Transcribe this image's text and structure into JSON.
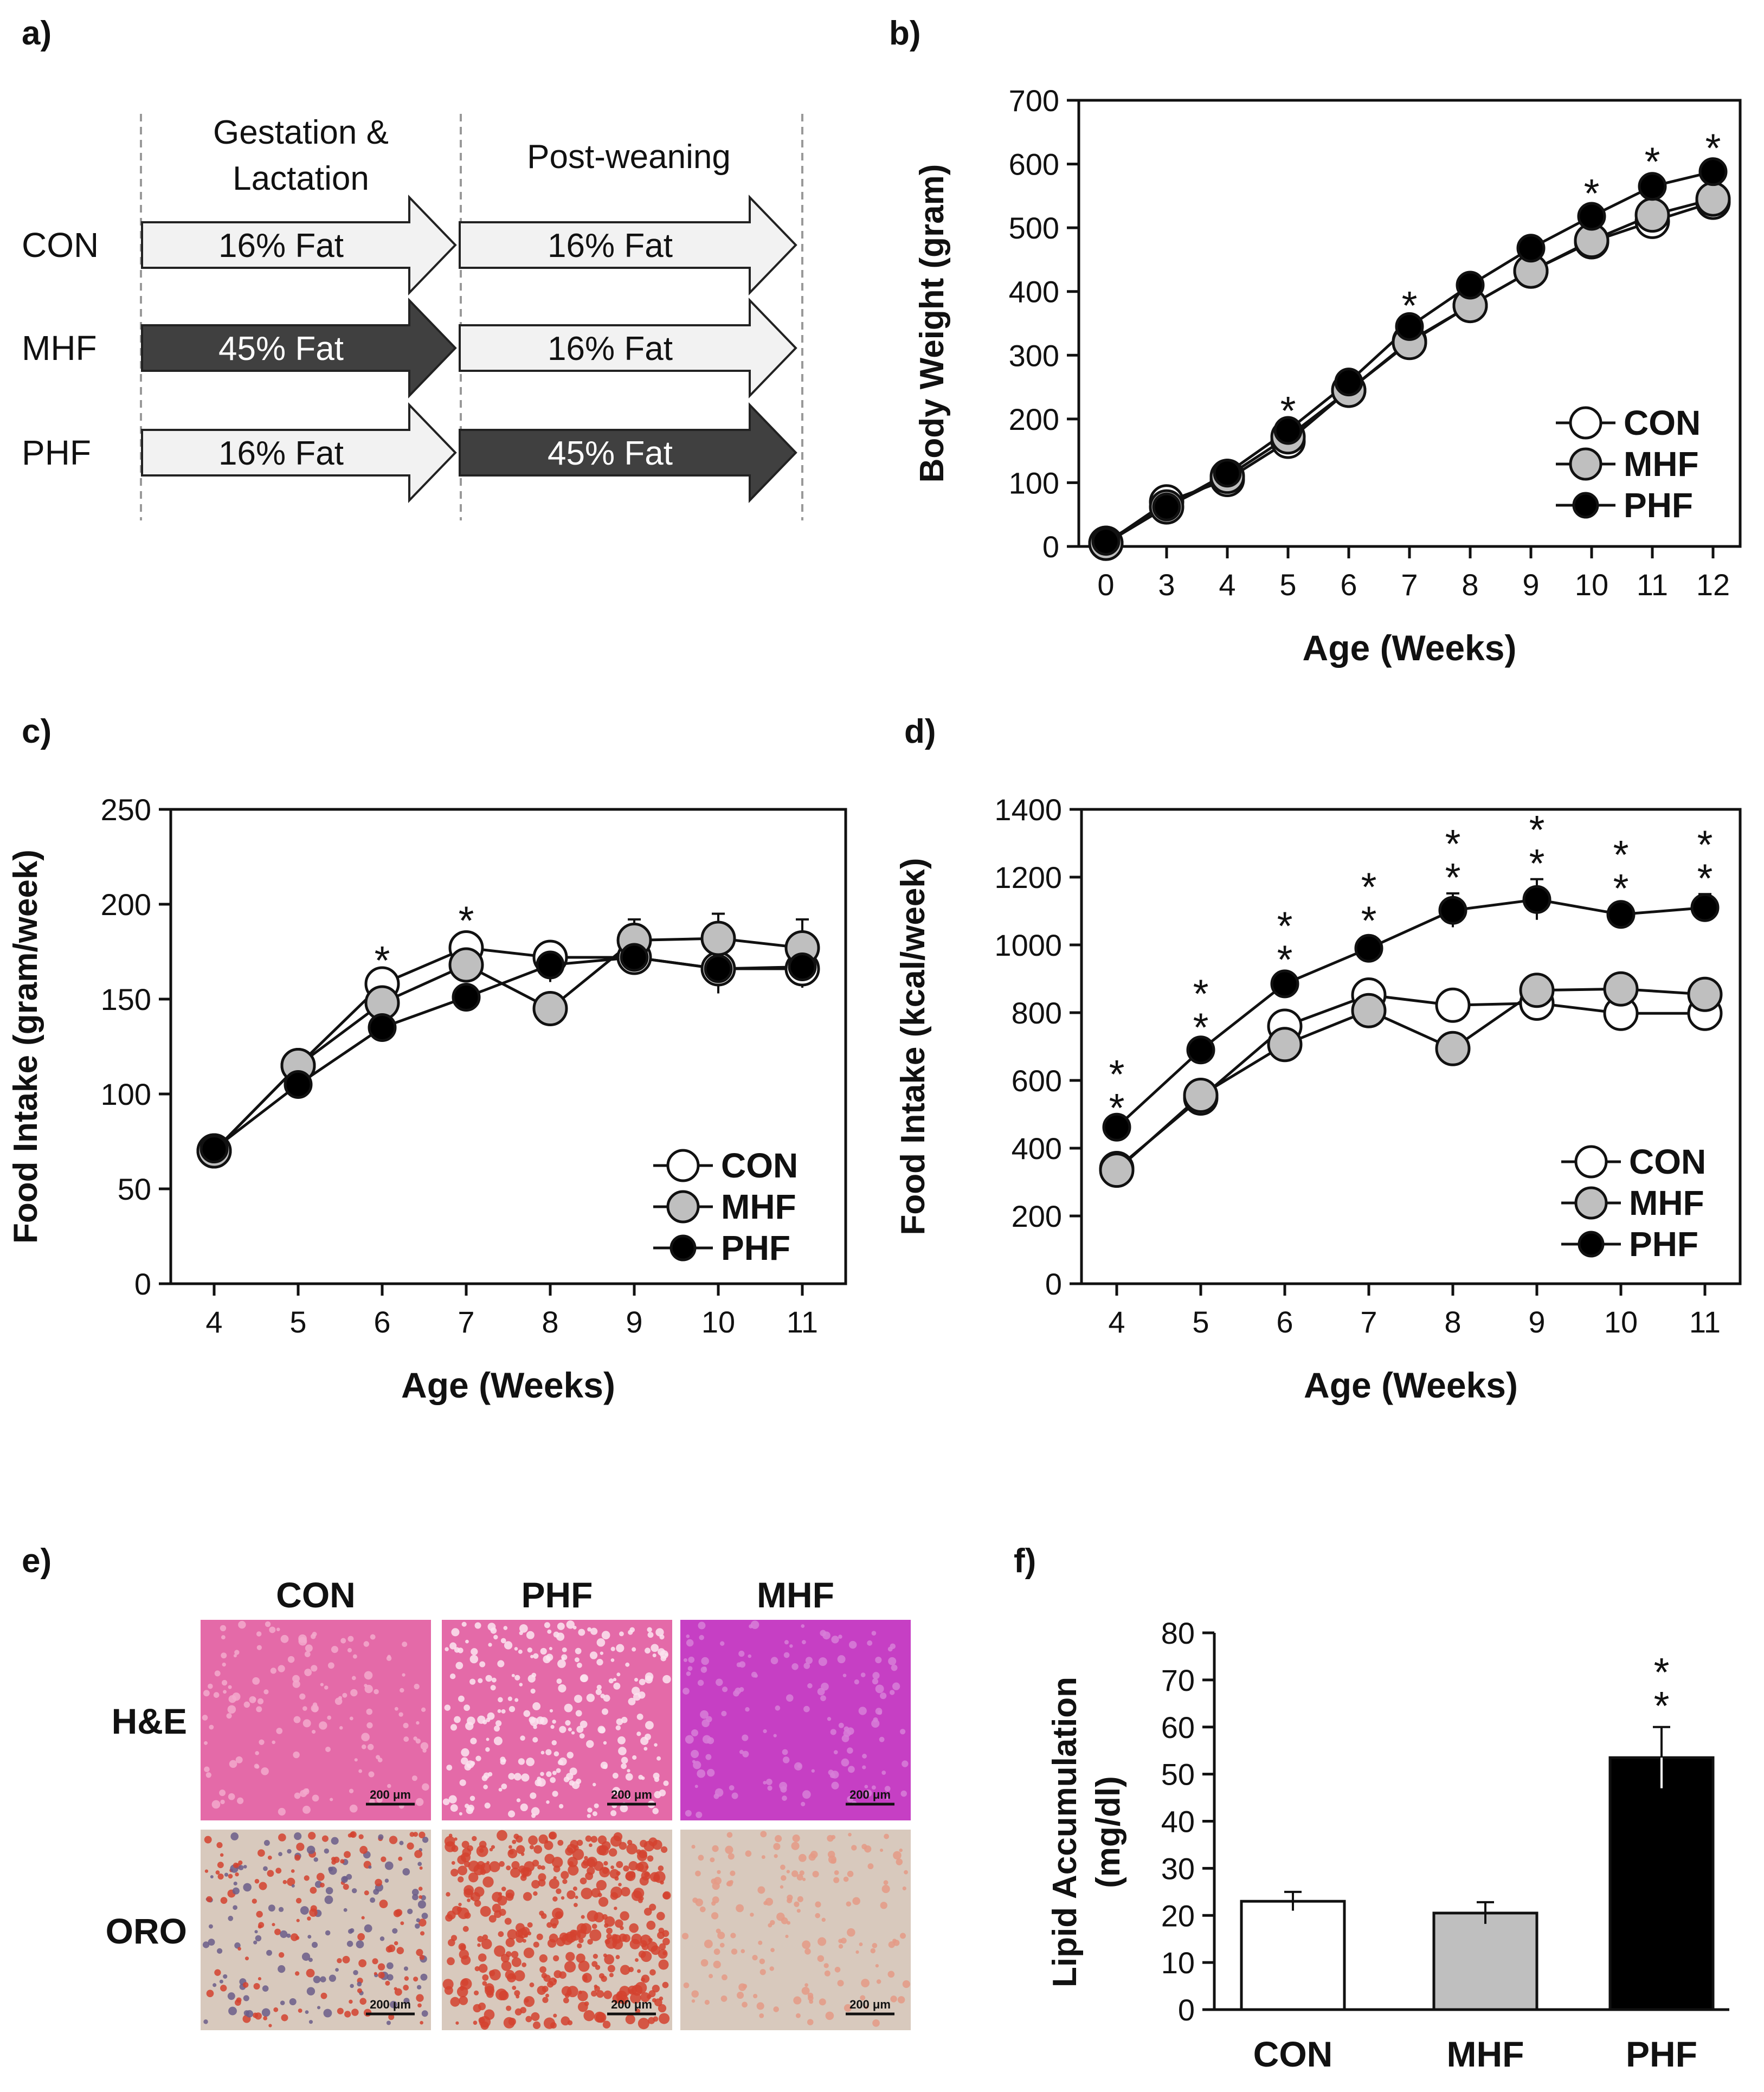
{
  "panel_labels": {
    "a": "a)",
    "b": "b)",
    "c": "c)",
    "d": "d)",
    "e": "e)",
    "f": "f)"
  },
  "colors": {
    "con_fill": "#ffffff",
    "mhf_fill": "#bfbfbf",
    "phf_fill": "#000000",
    "hf_arrow": "#404040",
    "lf_arrow": "#f2f2f2",
    "he_stain": "#e46aa8",
    "he_stain_mhf": "#c63fc4",
    "oro_bg": "#d8c9bd",
    "oro_dot": "#d3422f"
  },
  "design": {
    "headers": [
      "Gestation &\nLactation",
      "Post-weaning"
    ],
    "groups": [
      {
        "name": "CON",
        "gestation": "16% Fat",
        "post": "16% Fat"
      },
      {
        "name": "MHF",
        "gestation": "45% Fat",
        "post": "16% Fat"
      },
      {
        "name": "PHF",
        "gestation": "16% Fat",
        "post": "45% Fat"
      }
    ]
  },
  "histology": {
    "columns": [
      "CON",
      "PHF",
      "MHF"
    ],
    "rows": [
      "H&E",
      "ORO"
    ],
    "scale_bar": "200 μm"
  },
  "chart_data": [
    {
      "id": "b",
      "type": "line",
      "title": "",
      "xlabel": "Age (Weeks)",
      "ylabel": "Body Weight (gram)",
      "categories": [
        "0",
        "3",
        "4",
        "5",
        "6",
        "7",
        "8",
        "9",
        "10",
        "11",
        "12"
      ],
      "ylim": [
        0,
        700
      ],
      "yticks": [
        0,
        100,
        200,
        300,
        400,
        500,
        600,
        700
      ],
      "series": [
        {
          "name": "CON",
          "values": [
            5,
            70,
            105,
            165,
            245,
            322,
            378,
            432,
            478,
            510,
            540
          ],
          "errors": [
            2,
            5,
            5,
            6,
            7,
            8,
            9,
            9,
            10,
            10,
            10
          ]
        },
        {
          "name": "MHF",
          "values": [
            5,
            62,
            110,
            172,
            245,
            320,
            378,
            432,
            480,
            520,
            545
          ],
          "errors": [
            2,
            5,
            5,
            6,
            7,
            8,
            9,
            9,
            10,
            12,
            12
          ]
        },
        {
          "name": "PHF",
          "values": [
            8,
            62,
            115,
            182,
            258,
            345,
            410,
            468,
            518,
            565,
            588
          ],
          "errors": [
            2,
            5,
            5,
            6,
            7,
            8,
            9,
            10,
            11,
            14,
            12
          ]
        }
      ],
      "significance": {
        "3": "*",
        "5": "*",
        "8": "*",
        "9": "*",
        "10": "*"
      },
      "legend": [
        "CON",
        "MHF",
        "PHF"
      ]
    },
    {
      "id": "c",
      "type": "line",
      "title": "",
      "xlabel": "Age (Weeks)",
      "ylabel": "Food Intake (gram/week)",
      "categories": [
        "4",
        "5",
        "6",
        "7",
        "8",
        "9",
        "10",
        "11"
      ],
      "ylim": [
        0,
        250
      ],
      "yticks": [
        0,
        50,
        100,
        150,
        200,
        250
      ],
      "series": [
        {
          "name": "CON",
          "values": [
            70,
            115,
            158,
            177,
            172,
            172,
            166,
            166
          ],
          "errors": [
            3,
            4,
            4,
            6,
            6,
            6,
            12,
            10
          ]
        },
        {
          "name": "MHF",
          "values": [
            70,
            115,
            148,
            168,
            145,
            181,
            182,
            177
          ],
          "errors": [
            3,
            4,
            4,
            6,
            7,
            11,
            13,
            15
          ]
        },
        {
          "name": "PHF",
          "values": [
            71,
            105,
            135,
            151,
            168,
            172,
            166,
            167
          ],
          "errors": [
            3,
            4,
            4,
            5,
            9,
            9,
            13,
            9
          ]
        }
      ],
      "significance": {
        "2": "*",
        "3": "*"
      },
      "legend": [
        "CON",
        "MHF",
        "PHF"
      ]
    },
    {
      "id": "d",
      "type": "line",
      "title": "",
      "xlabel": "Age (Weeks)",
      "ylabel": "Food Intake (kcal/week)",
      "categories": [
        "4",
        "5",
        "6",
        "7",
        "8",
        "9",
        "10",
        "11"
      ],
      "ylim": [
        0,
        1400
      ],
      "yticks": [
        0,
        200,
        400,
        600,
        800,
        1000,
        1200,
        1400
      ],
      "series": [
        {
          "name": "CON",
          "values": [
            340,
            548,
            760,
            852,
            822,
            828,
            798,
            798
          ],
          "errors": [
            10,
            15,
            20,
            30,
            35,
            25,
            15,
            15
          ]
        },
        {
          "name": "MHF",
          "values": [
            335,
            556,
            706,
            806,
            694,
            866,
            870,
            854
          ],
          "errors": [
            10,
            15,
            20,
            25,
            45,
            35,
            45,
            35
          ]
        },
        {
          "name": "PHF",
          "values": [
            462,
            690,
            885,
            990,
            1102,
            1134,
            1090,
            1110
          ],
          "errors": [
            10,
            20,
            25,
            35,
            50,
            60,
            30,
            40
          ]
        }
      ],
      "significance": {
        "0": "**",
        "1": "**",
        "2": "**",
        "3": "**",
        "4": "**",
        "5": "**",
        "6": "**",
        "7": "**"
      },
      "legend": [
        "CON",
        "MHF",
        "PHF"
      ]
    },
    {
      "id": "f",
      "type": "bar",
      "title": "",
      "xlabel": "",
      "ylabel": "Lipid Accumulation\n(mg/dl)",
      "categories": [
        "CON",
        "MHF",
        "PHF"
      ],
      "values": [
        23,
        20.5,
        53.5
      ],
      "errors": [
        2,
        2.3,
        6.5
      ],
      "ylim": [
        0,
        80
      ],
      "yticks": [
        0,
        10,
        20,
        30,
        40,
        50,
        60,
        70,
        80
      ],
      "significance": {
        "2": "**"
      }
    }
  ]
}
